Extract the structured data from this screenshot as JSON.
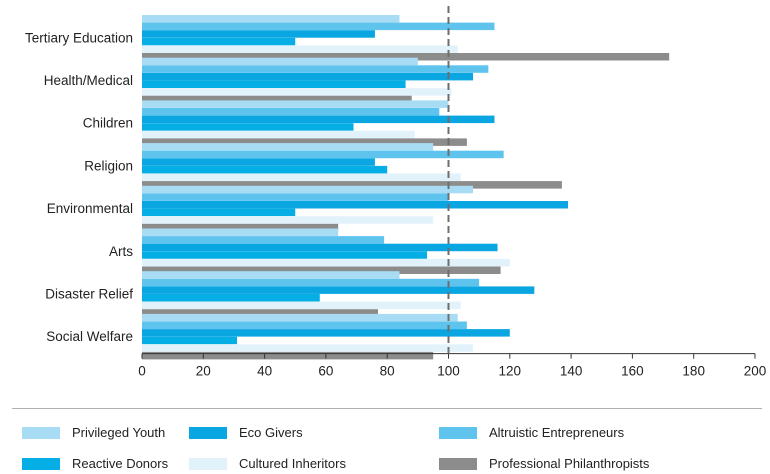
{
  "chart_data": {
    "type": "bar",
    "orientation": "horizontal",
    "categories": [
      "Tertiary Education",
      "Health/Medical",
      "Children",
      "Religion",
      "Environmental",
      "Arts",
      "Disaster Relief",
      "Social Welfare"
    ],
    "series": [
      {
        "name": "Privileged Youth",
        "color": "#a8dcf4",
        "values": [
          84,
          90,
          100,
          95,
          108,
          64,
          84,
          103
        ]
      },
      {
        "name": "Altruistic Entrepreneurs",
        "color": "#5ec4ee",
        "values": [
          115,
          113,
          97,
          118,
          100,
          79,
          110,
          106
        ]
      },
      {
        "name": "Eco Givers",
        "color": "#0aa6e2",
        "values": [
          76,
          108,
          115,
          76,
          139,
          116,
          128,
          120
        ]
      },
      {
        "name": "Reactive Donors",
        "color": "#06aee6",
        "values": [
          50,
          86,
          69,
          80,
          50,
          93,
          58,
          31
        ]
      },
      {
        "name": "Cultured Inheritors",
        "color": "#e2f2fb",
        "values": [
          103,
          101,
          89,
          104,
          95,
          120,
          104,
          108
        ]
      },
      {
        "name": "Professional Philanthropists",
        "color": "#8c8c8c",
        "values": [
          172,
          88,
          106,
          137,
          64,
          117,
          77,
          95
        ]
      }
    ],
    "xlim": [
      0,
      200
    ],
    "xticks": [
      0,
      20,
      40,
      60,
      80,
      100,
      120,
      140,
      160,
      180,
      200
    ],
    "reference_line": 100,
    "grid": false,
    "legend_position": "bottom"
  },
  "legend": [
    {
      "label": "Privileged Youth",
      "color": "#a8dcf4"
    },
    {
      "label": "Eco Givers",
      "color": "#0aa6e2"
    },
    {
      "label": "Altruistic Entrepreneurs",
      "color": "#5ec4ee"
    },
    {
      "label": "Reactive Donors",
      "color": "#06aee6"
    },
    {
      "label": "Cultured Inheritors",
      "color": "#e2f2fb"
    },
    {
      "label": "Professional Philanthropists",
      "color": "#8c8c8c"
    }
  ]
}
